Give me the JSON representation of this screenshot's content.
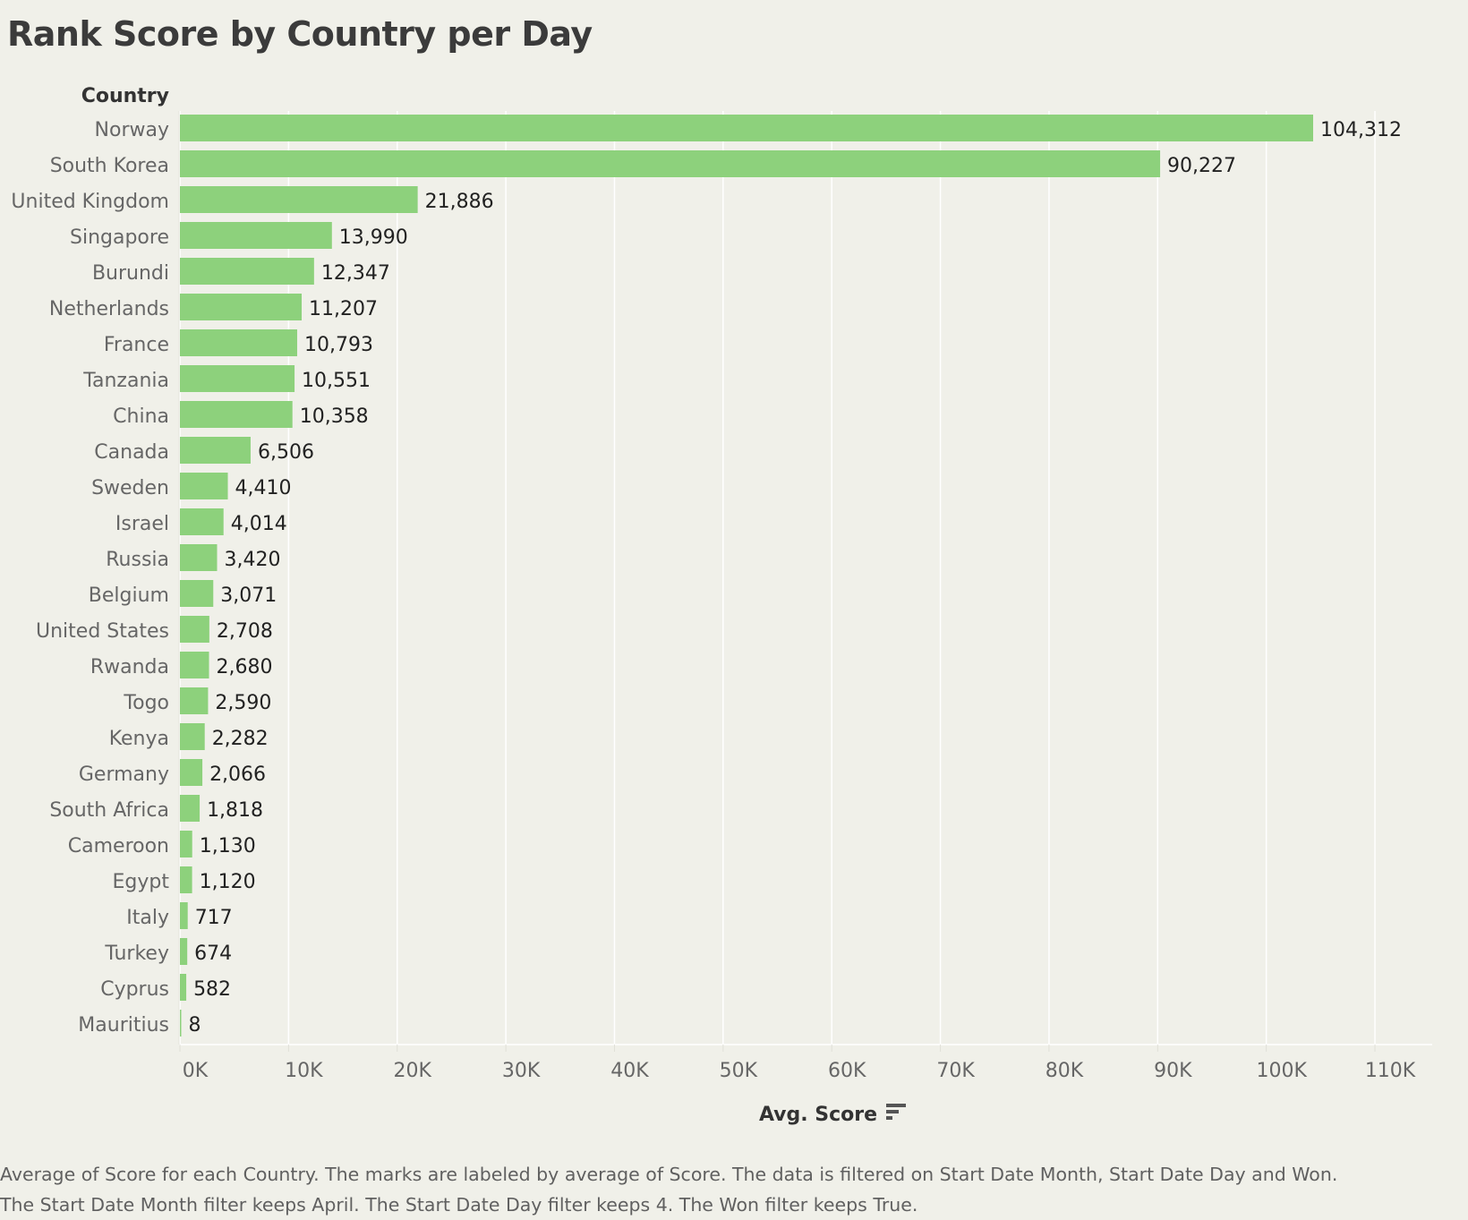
{
  "title": "Rank Score by Country per Day",
  "row_header": "Country",
  "x_title": "Avg. Score",
  "caption": [
    "Average of Score for each Country.  The marks are labeled by average of Score. The data is filtered on Start Date Month, Start Date Day and Won.",
    "The Start Date Month filter keeps April. The Start Date Day filter keeps 4. The Won filter keeps True."
  ],
  "colors": {
    "bar": "#8dd17c",
    "background": "#f0f0e9",
    "gridline": "#ffffff",
    "text": "#333333",
    "axis_text": "#666666"
  },
  "icons": {
    "sort": "sort-descending-icon"
  },
  "chart_data": {
    "type": "bar",
    "orientation": "horizontal",
    "title": "Rank Score by Country per Day",
    "xlabel": "Avg. Score",
    "ylabel": "Country",
    "xlim": [
      0,
      110000
    ],
    "ticks": [
      0,
      10000,
      20000,
      30000,
      40000,
      50000,
      60000,
      70000,
      80000,
      90000,
      100000,
      110000
    ],
    "tick_labels": [
      "0K",
      "10K",
      "20K",
      "30K",
      "40K",
      "50K",
      "60K",
      "70K",
      "80K",
      "90K",
      "100K",
      "110K"
    ],
    "grid": true,
    "categories": [
      "Norway",
      "South Korea",
      "United Kingdom",
      "Singapore",
      "Burundi",
      "Netherlands",
      "France",
      "Tanzania",
      "China",
      "Canada",
      "Sweden",
      "Israel",
      "Russia",
      "Belgium",
      "United States",
      "Rwanda",
      "Togo",
      "Kenya",
      "Germany",
      "South Africa",
      "Cameroon",
      "Egypt",
      "Italy",
      "Turkey",
      "Cyprus",
      "Mauritius"
    ],
    "values": [
      104312,
      90227,
      21886,
      13990,
      12347,
      11207,
      10793,
      10551,
      10358,
      6506,
      4410,
      4014,
      3420,
      3071,
      2708,
      2680,
      2590,
      2282,
      2066,
      1818,
      1130,
      1120,
      717,
      674,
      582,
      8
    ],
    "value_labels": [
      "104,312",
      "90,227",
      "21,886",
      "13,990",
      "12,347",
      "11,207",
      "10,793",
      "10,551",
      "10,358",
      "6,506",
      "4,410",
      "4,014",
      "3,420",
      "3,071",
      "2,708",
      "2,680",
      "2,590",
      "2,282",
      "2,066",
      "1,818",
      "1,130",
      "1,120",
      "717",
      "674",
      "582",
      "8"
    ]
  }
}
